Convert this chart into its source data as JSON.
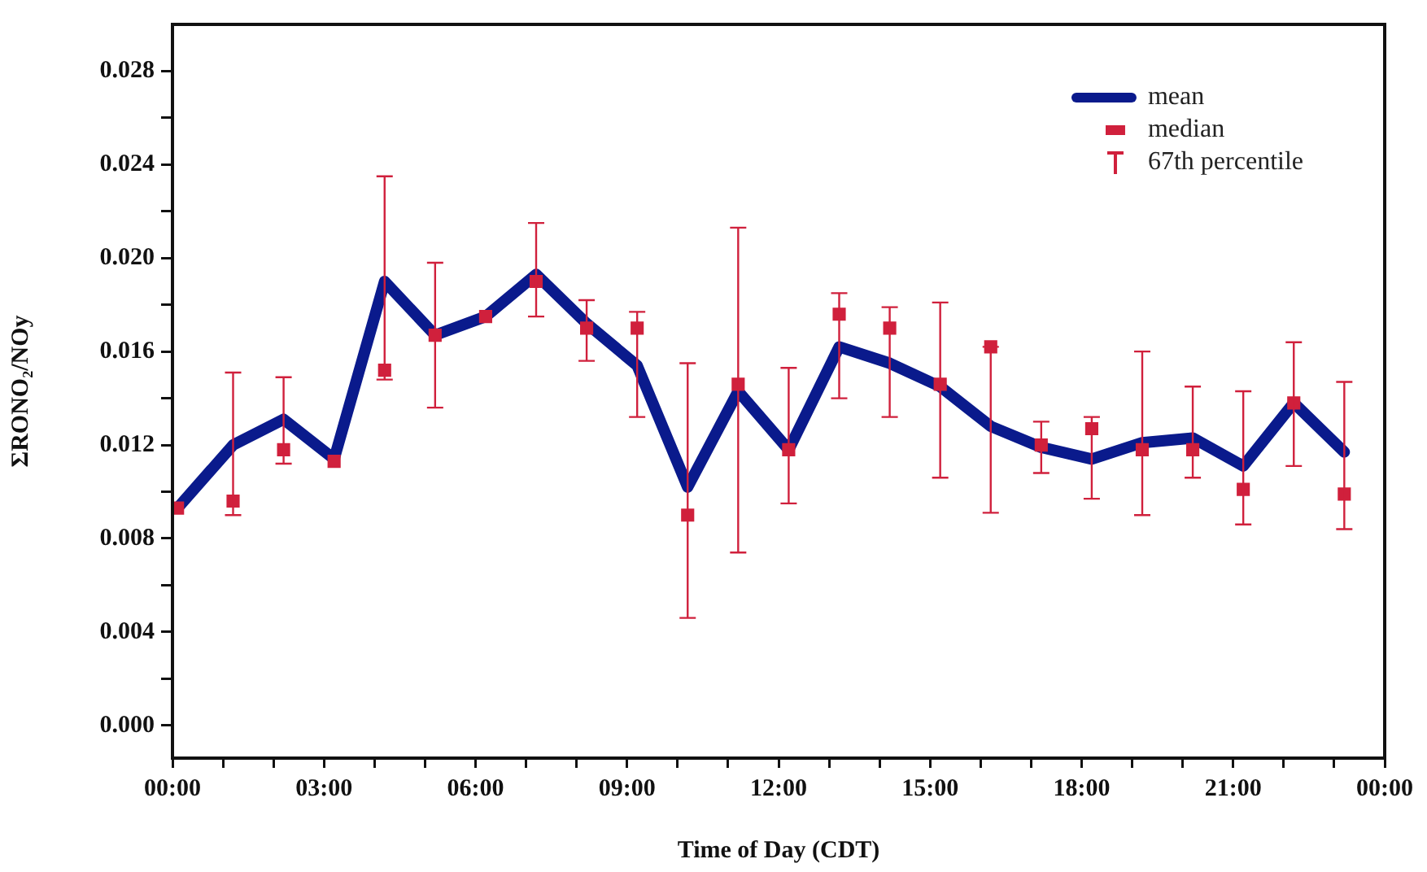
{
  "chart_data": {
    "type": "line",
    "xlabel": "Time of Day (CDT)",
    "ylabel": "ΣRONO₂/NOy",
    "annotations": [
      "67th percentile"
    ],
    "x": [
      0.1,
      1.2,
      2.2,
      3.2,
      4.2,
      5.2,
      6.2,
      7.2,
      8.2,
      9.2,
      10.2,
      11.2,
      12.2,
      13.2,
      14.2,
      15.2,
      16.2,
      17.2,
      18.2,
      19.2,
      20.2,
      21.2,
      22.2,
      23.2
    ],
    "series": [
      {
        "name": "mean",
        "color": "#0a1a8c",
        "marker": "none",
        "values": [
          0.0093,
          0.012,
          0.0131,
          0.0114,
          0.019,
          0.0167,
          0.0175,
          0.0193,
          0.0172,
          0.0154,
          0.0102,
          0.0143,
          0.0118,
          0.0162,
          0.0155,
          0.0145,
          0.0128,
          0.0119,
          0.0114,
          0.0121,
          0.0123,
          0.0111,
          0.0138,
          0.0117
        ]
      },
      {
        "name": "median",
        "type": "scatter",
        "color": "#d0203c",
        "marker": "square",
        "values": [
          0.0093,
          0.0096,
          0.0118,
          0.0113,
          0.0152,
          0.0167,
          0.0175,
          0.019,
          0.017,
          0.017,
          0.009,
          0.0146,
          0.0118,
          0.0176,
          0.017,
          0.0146,
          0.0162,
          0.012,
          0.0127,
          0.0118,
          0.0118,
          0.0101,
          0.0138,
          0.0099
        ],
        "errors": [
          null,
          [
            0.009,
            0.0151
          ],
          [
            0.0112,
            0.0149
          ],
          null,
          [
            0.0148,
            0.0235
          ],
          [
            0.0136,
            0.0198
          ],
          null,
          [
            0.0175,
            0.0215
          ],
          [
            0.0156,
            0.0182
          ],
          [
            0.0132,
            0.0177
          ],
          [
            0.0046,
            0.0155
          ],
          [
            0.0074,
            0.0213
          ],
          [
            0.0095,
            0.0153
          ],
          [
            0.014,
            0.0185
          ],
          [
            0.0132,
            0.0179
          ],
          [
            0.0106,
            0.0181
          ],
          [
            0.0091,
            0.0162
          ],
          [
            0.0108,
            0.013
          ],
          [
            0.0097,
            0.0132
          ],
          [
            0.009,
            0.016
          ],
          [
            0.0106,
            0.0145
          ],
          [
            0.0086,
            0.0143
          ],
          [
            0.0111,
            0.0164
          ],
          [
            0.0084,
            0.0147
          ]
        ]
      }
    ],
    "xlim": [
      0,
      24
    ],
    "xticks": [
      {
        "value": 0,
        "label": "00:00"
      },
      {
        "value": 1,
        "label": null
      },
      {
        "value": 2,
        "label": null
      },
      {
        "value": 3,
        "label": "03:00"
      },
      {
        "value": 4,
        "label": null
      },
      {
        "value": 5,
        "label": null
      },
      {
        "value": 6,
        "label": "06:00"
      },
      {
        "value": 7,
        "label": null
      },
      {
        "value": 8,
        "label": null
      },
      {
        "value": 9,
        "label": "09:00"
      },
      {
        "value": 10,
        "label": null
      },
      {
        "value": 11,
        "label": null
      },
      {
        "value": 12,
        "label": "12:00"
      },
      {
        "value": 13,
        "label": null
      },
      {
        "value": 14,
        "label": null
      },
      {
        "value": 15,
        "label": "15:00"
      },
      {
        "value": 16,
        "label": null
      },
      {
        "value": 17,
        "label": null
      },
      {
        "value": 18,
        "label": "18:00"
      },
      {
        "value": 19,
        "label": null
      },
      {
        "value": 20,
        "label": null
      },
      {
        "value": 21,
        "label": "21:00"
      },
      {
        "value": 22,
        "label": null
      },
      {
        "value": 23,
        "label": null
      },
      {
        "value": 24,
        "label": "00:00"
      }
    ],
    "ylim": [
      -0.0014,
      0.03
    ],
    "yticks": [
      {
        "value": 0,
        "label": "0.000"
      },
      {
        "value": 0.002,
        "label": null
      },
      {
        "value": 0.004,
        "label": "0.004"
      },
      {
        "value": 0.006,
        "label": null
      },
      {
        "value": 0.008,
        "label": "0.008"
      },
      {
        "value": 0.01,
        "label": null
      },
      {
        "value": 0.012,
        "label": "0.012"
      },
      {
        "value": 0.014,
        "label": null
      },
      {
        "value": 0.016,
        "label": "0.016"
      },
      {
        "value": 0.018,
        "label": null
      },
      {
        "value": 0.02,
        "label": "0.020"
      },
      {
        "value": 0.022,
        "label": null
      },
      {
        "value": 0.024,
        "label": "0.024"
      },
      {
        "value": 0.026,
        "label": null
      },
      {
        "value": 0.028,
        "label": "0.028"
      }
    ],
    "grid": false,
    "legend": "top right"
  }
}
